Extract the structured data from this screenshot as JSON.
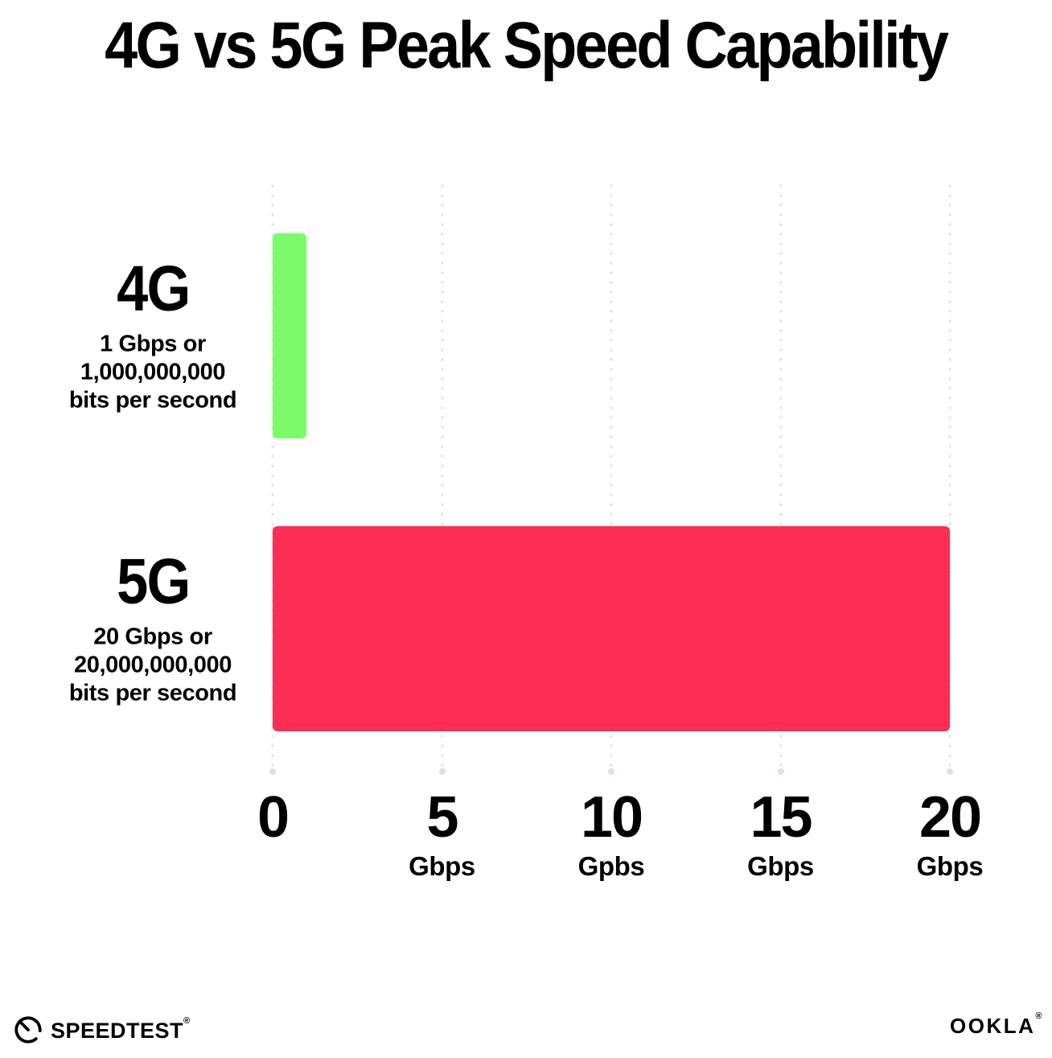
{
  "chart_data": {
    "type": "bar",
    "orientation": "horizontal",
    "title": "4G vs 5G Peak Speed Capability",
    "categories": [
      "4G",
      "5G"
    ],
    "values": [
      1,
      20
    ],
    "series": [
      {
        "name": "4G",
        "value": 1,
        "color": "#7DFA69",
        "sublabel_lines": [
          "1 Gbps or",
          "1,000,000,000",
          "bits per second"
        ]
      },
      {
        "name": "5G",
        "value": 20,
        "color": "#FC2D55",
        "sublabel_lines": [
          "20 Gbps or",
          "20,000,000,000",
          "bits per second"
        ]
      }
    ],
    "xlabel": "",
    "ylabel": "",
    "xlim": [
      0,
      20
    ],
    "x_ticks": [
      {
        "value": 0,
        "label": "0",
        "unit": ""
      },
      {
        "value": 5,
        "label": "5",
        "unit": "Gbps"
      },
      {
        "value": 10,
        "label": "10",
        "unit": "Gpbs"
      },
      {
        "value": 15,
        "label": "15",
        "unit": "Gbps"
      },
      {
        "value": 20,
        "label": "20",
        "unit": "Gbps"
      }
    ],
    "grid": "vertical-dotted",
    "gridline_color": "#DCE0EC",
    "legend": "none",
    "background_color": "#FFFFFF",
    "text_color": "#000000"
  },
  "footer": {
    "speedtest_label": "SPEEDTEST",
    "speedtest_trademark": "®",
    "ookla_label": "OOKLA",
    "ookla_trademark": "®"
  }
}
